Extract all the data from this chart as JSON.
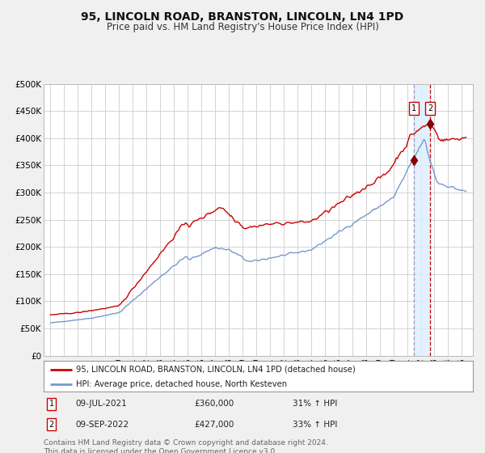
{
  "title": "95, LINCOLN ROAD, BRANSTON, LINCOLN, LN4 1PD",
  "subtitle": "Price paid vs. HM Land Registry's House Price Index (HPI)",
  "title_fontsize": 10,
  "subtitle_fontsize": 8.5,
  "bg_color": "#f0f0f0",
  "plot_bg_color": "#ffffff",
  "grid_color": "#cccccc",
  "red_line_color": "#cc0000",
  "blue_line_color": "#7799cc",
  "ylabel_vals": [
    "£0",
    "£50K",
    "£100K",
    "£150K",
    "£200K",
    "£250K",
    "£300K",
    "£350K",
    "£400K",
    "£450K",
    "£500K"
  ],
  "ylim": [
    0,
    500000
  ],
  "xlim_start": 1994.5,
  "xlim_end": 2025.8,
  "marker1_x": 2021.52,
  "marker1_y": 360000,
  "marker2_x": 2022.69,
  "marker2_y": 427000,
  "vline1_x": 2021.52,
  "vline2_x": 2022.69,
  "legend_line1": "95, LINCOLN ROAD, BRANSTON, LINCOLN, LN4 1PD (detached house)",
  "legend_line2": "HPI: Average price, detached house, North Kesteven",
  "annot1_label": "1",
  "annot2_label": "2",
  "annot1_date": "09-JUL-2021",
  "annot1_price": "£360,000",
  "annot1_hpi": "31% ↑ HPI",
  "annot2_date": "09-SEP-2022",
  "annot2_price": "£427,000",
  "annot2_hpi": "33% ↑ HPI",
  "footer": "Contains HM Land Registry data © Crown copyright and database right 2024.\nThis data is licensed under the Open Government Licence v3.0.",
  "footer_fontsize": 6.5
}
